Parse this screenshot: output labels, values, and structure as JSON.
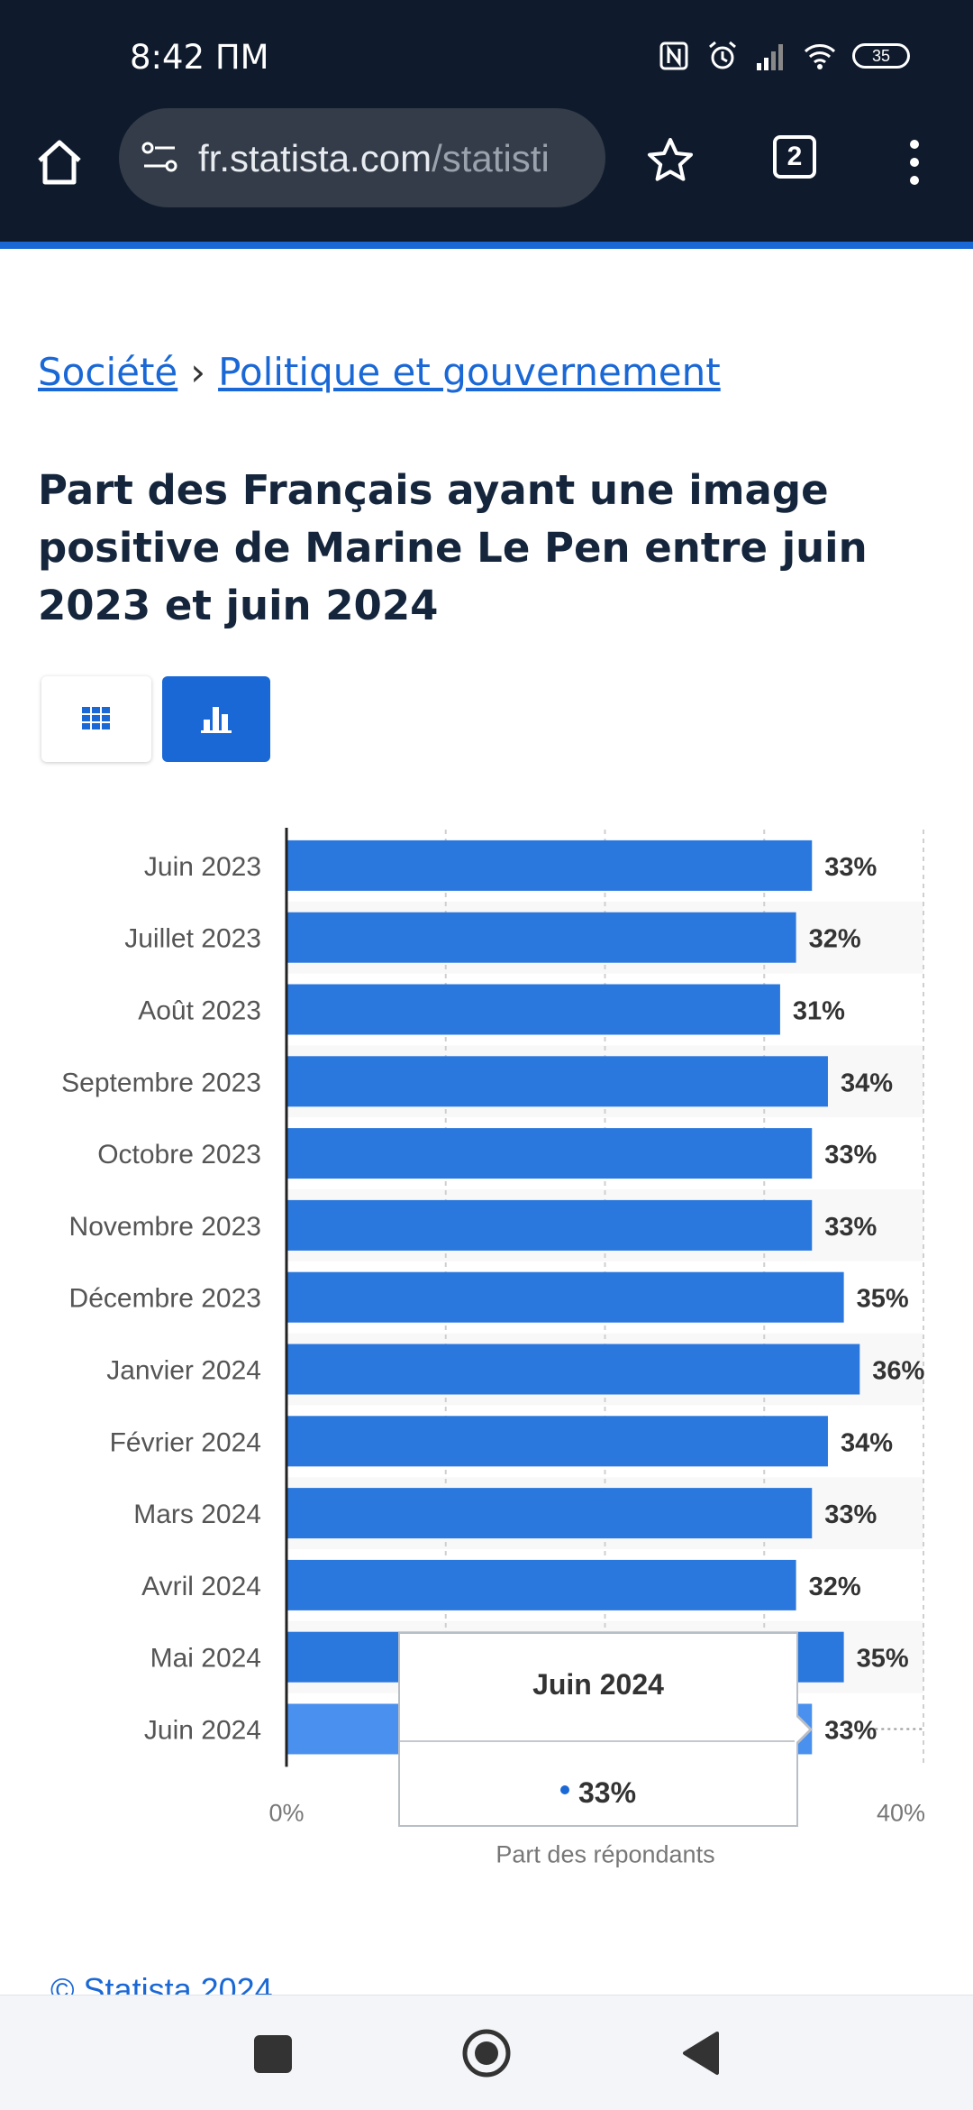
{
  "status_bar": {
    "time": "8:42 ПМ",
    "battery": "35"
  },
  "browser": {
    "url_host": "fr.statista.com",
    "url_path": "/statisti",
    "tab_count": "2"
  },
  "breadcrumb": {
    "items": [
      "Société",
      "Politique et gouvernement"
    ],
    "separator": "›"
  },
  "page": {
    "title": "Part des Français ayant une image positive de Marine Le Pen entre juin 2023 et juin 2024"
  },
  "colors": {
    "bar": "#2a78dd",
    "bar_highlight": "#4a90ee",
    "accent": "#1a68d6"
  },
  "chart_data": {
    "type": "bar",
    "orientation": "horizontal",
    "categories": [
      "Juin 2023",
      "Juillet 2023",
      "Août 2023",
      "Septembre 2023",
      "Octobre 2023",
      "Novembre 2023",
      "Décembre 2023",
      "Janvier 2024",
      "Février 2024",
      "Mars 2024",
      "Avril 2024",
      "Mai 2024",
      "Juin 2024"
    ],
    "values": [
      33,
      32,
      31,
      34,
      33,
      33,
      35,
      36,
      34,
      33,
      32,
      35,
      33
    ],
    "value_labels": [
      "33%",
      "32%",
      "31%",
      "34%",
      "33%",
      "33%",
      "35%",
      "36%",
      "34%",
      "33%",
      "32%",
      "35%",
      "33%"
    ],
    "xlabel": "Part des répondants",
    "xlim": [
      0,
      40
    ],
    "x_tick_labels": [
      "0%",
      "40%"
    ],
    "grid": true,
    "highlighted_category": "Juin 2024"
  },
  "tooltip": {
    "title": "Juin 2024",
    "value": "33%"
  },
  "footer": {
    "copyright": "© Statista 2024"
  }
}
